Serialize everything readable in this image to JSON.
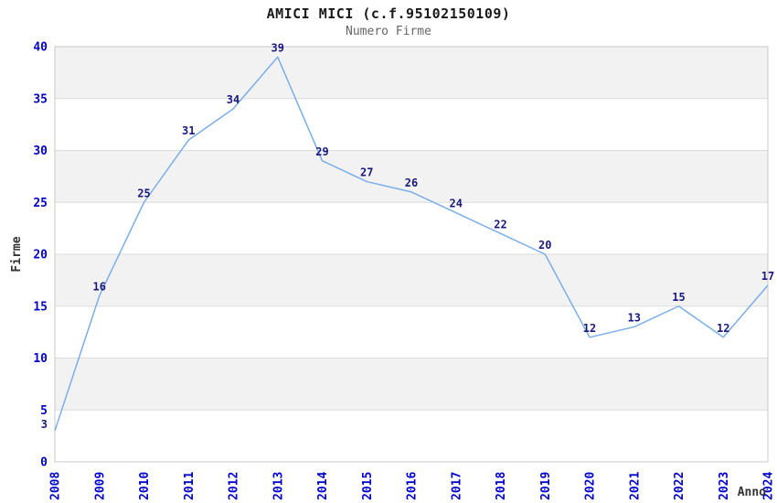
{
  "header": {
    "title": "AMICI MICI (c.f.95102150109)",
    "subtitle": "Numero Firme"
  },
  "chart_data": {
    "type": "line",
    "title": "AMICI MICI (c.f.95102150109)",
    "subtitle": "Numero Firme",
    "xlabel": "Anno",
    "ylabel": "Firme",
    "x": [
      2008,
      2009,
      2010,
      2011,
      2012,
      2013,
      2014,
      2015,
      2016,
      2017,
      2018,
      2019,
      2020,
      2021,
      2022,
      2023,
      2024
    ],
    "series": [
      {
        "name": "Numero Firme",
        "values": [
          3,
          16,
          25,
          31,
          34,
          39,
          29,
          27,
          26,
          24,
          22,
          20,
          12,
          13,
          15,
          12,
          17
        ]
      }
    ],
    "ylim": [
      0,
      40
    ],
    "ytick_step": 5,
    "yticks": [
      0,
      5,
      10,
      15,
      20,
      25,
      30,
      35,
      40
    ],
    "grid": "horizontal-gridlines-with-alternating-bands",
    "legend_position": "none",
    "data_labels_visible": true,
    "colors": {
      "line": "#7aaee8",
      "tick_label": "#0000cc",
      "data_label": "#1a1a7e",
      "band_fill": "#f2f2f2",
      "gridline": "#dcdcdc",
      "plot_border": "#c8c8c8",
      "axis_label": "#333333",
      "title": "#1a1a1a",
      "subtitle": "#666666",
      "background": "#ffffff"
    }
  }
}
